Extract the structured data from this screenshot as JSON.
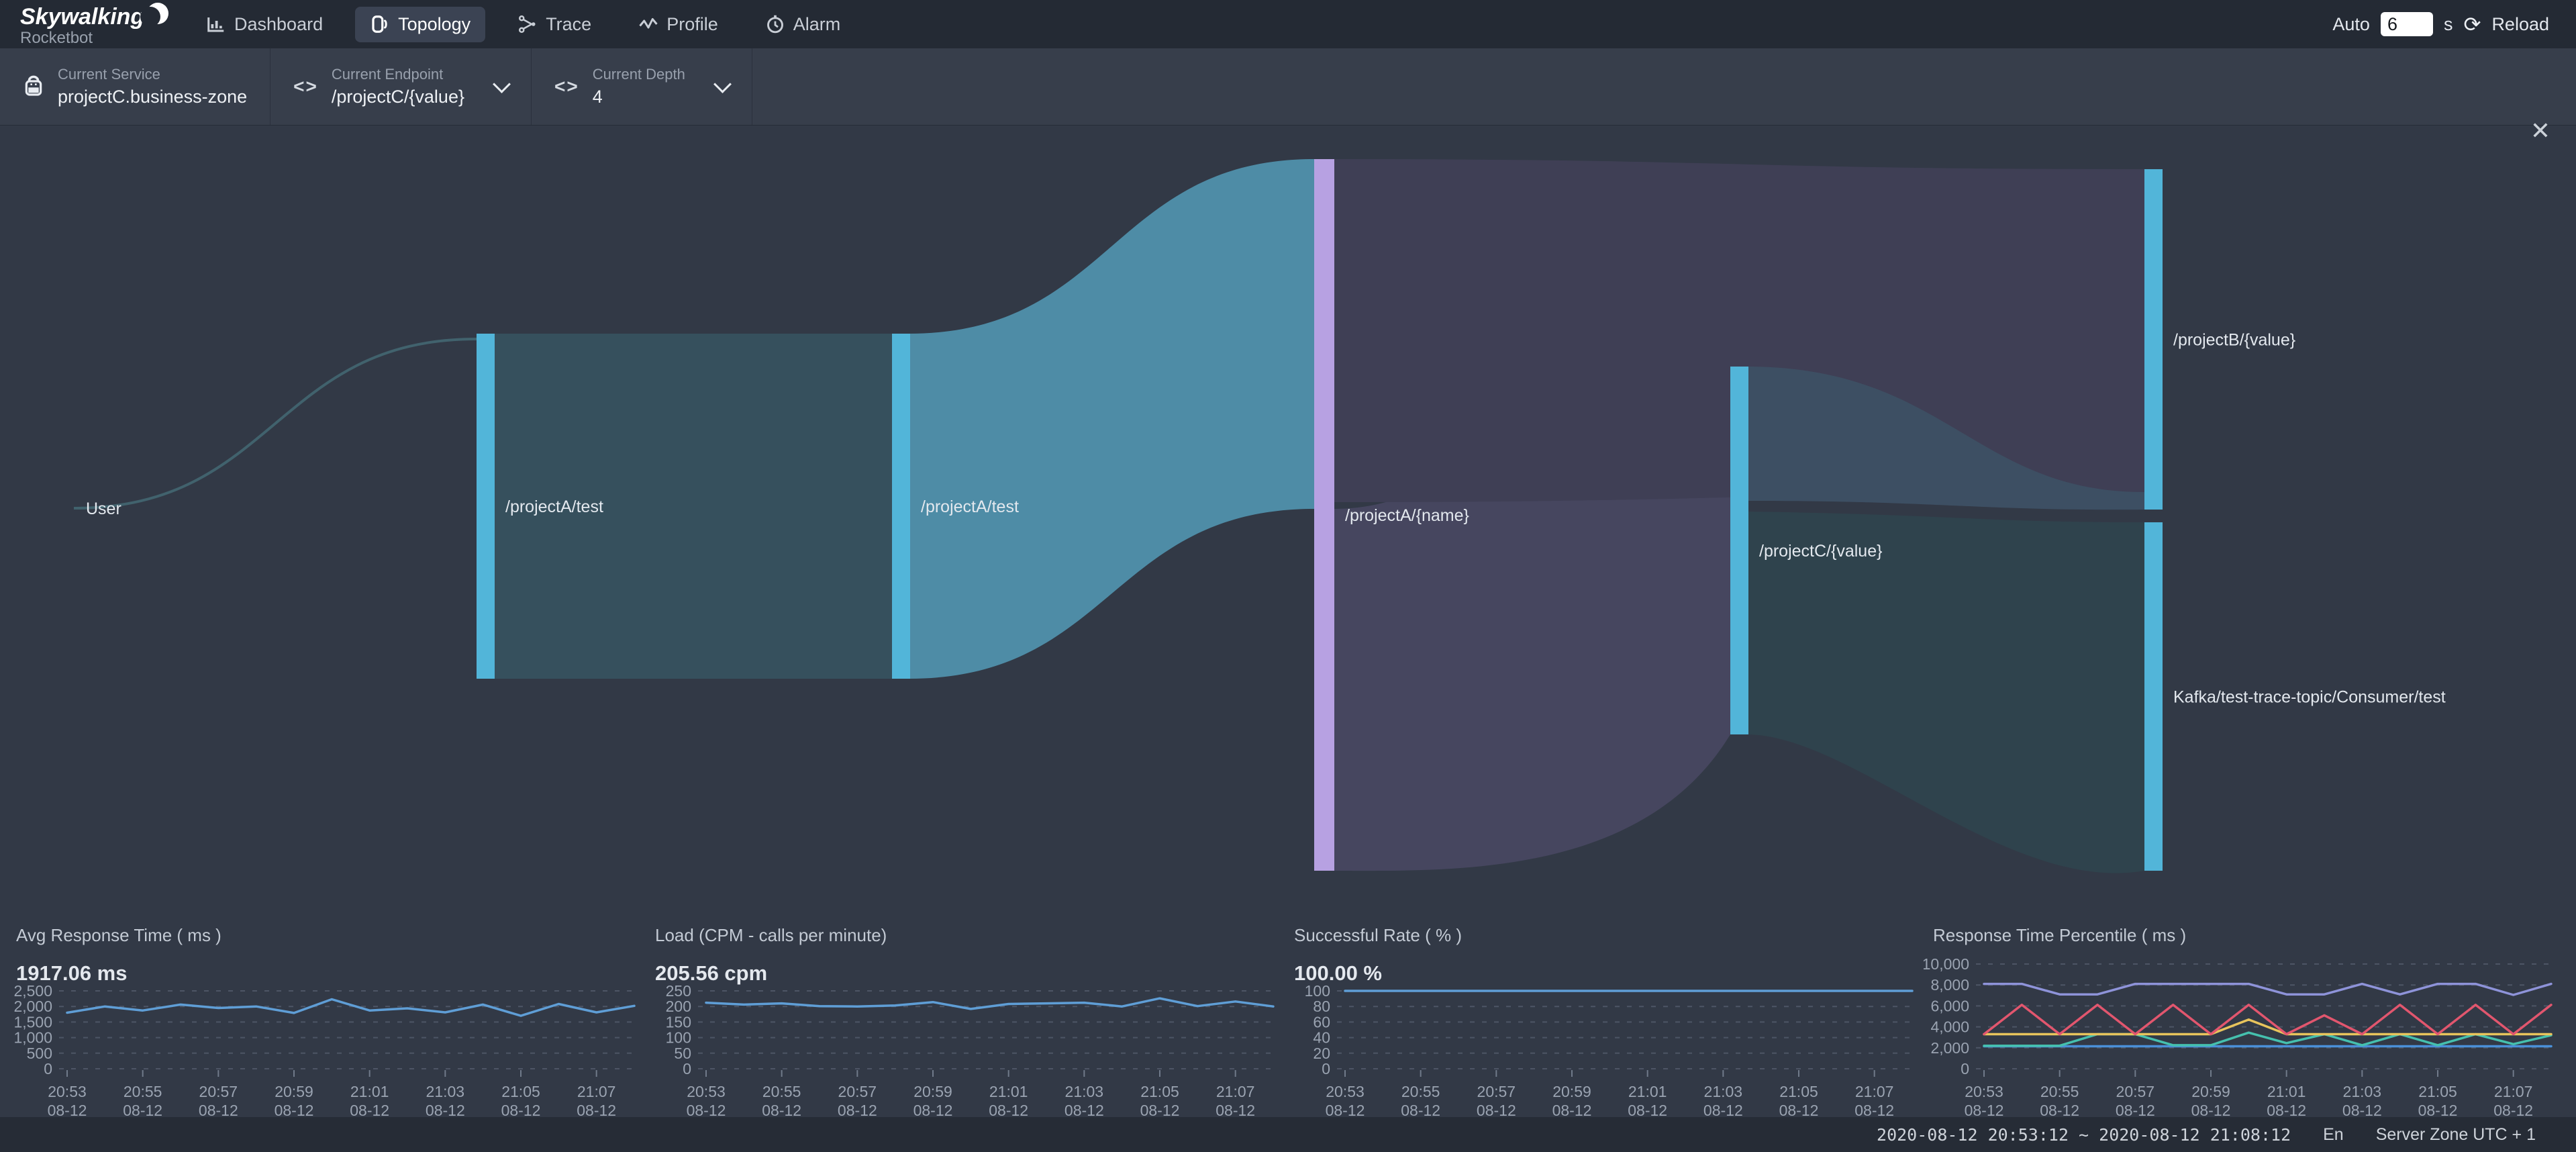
{
  "header": {
    "logo": {
      "title": "Skywalking",
      "subtitle": "Rocketbot"
    },
    "nav": [
      {
        "label": "Dashboard",
        "icon": "dashboard-icon",
        "active": false
      },
      {
        "label": "Topology",
        "icon": "topology-icon",
        "active": true
      },
      {
        "label": "Trace",
        "icon": "trace-icon",
        "active": false
      },
      {
        "label": "Profile",
        "icon": "profile-icon",
        "active": false
      },
      {
        "label": "Alarm",
        "icon": "alarm-icon",
        "active": false
      }
    ],
    "auto": {
      "label": "Auto",
      "value": "6",
      "unit": "s",
      "reload_label": "Reload",
      "reload_glyph": "⟳"
    }
  },
  "toolbar": {
    "service": {
      "label": "Current Service",
      "value": "projectC.business-zone"
    },
    "endpoint": {
      "label": "Current Endpoint",
      "value": "/projectC/{value}",
      "icon_glyph": "<>"
    },
    "depth": {
      "label": "Current Depth",
      "value": "4",
      "icon_glyph": "<>"
    },
    "close_glyph": "✕"
  },
  "sankey": {
    "nodes": [
      {
        "id": "user",
        "label": "User",
        "color": null
      },
      {
        "id": "projectA-test-1",
        "label": "/projectA/test",
        "color": "#52b5d9",
        "label_color": "#e3e8ee"
      },
      {
        "id": "projectA-test-2",
        "label": "/projectA/test",
        "color": "#52b5d9",
        "label_color": "#54b7dc"
      },
      {
        "id": "projectA-name",
        "label": "/projectA/{name}",
        "color": "#b7a1e2",
        "label_color": "#e3e8ee"
      },
      {
        "id": "projectC-value",
        "label": "/projectC/{value}",
        "color": "#52b5d9",
        "label_color": "#e3e8ee"
      },
      {
        "id": "projectB-value",
        "label": "/projectB/{value}",
        "color": "#52b5d9",
        "label_color": "#e3e8ee"
      },
      {
        "id": "kafka-consumer",
        "label": "Kafka/test-trace-topic/Consumer/test",
        "color": "#52b5d9",
        "label_color": "#e3e8ee"
      }
    ],
    "links": [
      {
        "source": "user",
        "target": "projectA-test-1",
        "color": "#41626d"
      },
      {
        "source": "projectA-test-1",
        "target": "projectA-test-2",
        "color": "#36505d"
      },
      {
        "source": "projectA-test-2",
        "target": "projectA-name",
        "color": "#4e8ca6"
      },
      {
        "source": "projectA-name",
        "target": "projectB-value",
        "color": "#3f3f55"
      },
      {
        "source": "projectA-name",
        "target": "projectC-value",
        "color": "#46465f"
      },
      {
        "source": "projectC-value",
        "target": "projectB-value",
        "color": "#3d4f63"
      },
      {
        "source": "projectC-value",
        "target": "kafka-consumer",
        "color": "#2f434d"
      }
    ]
  },
  "chart_data": [
    {
      "type": "line",
      "title": "Avg Response Time ( ms )",
      "value_label": "1917.06 ms",
      "xlabel": "",
      "ylabel": "",
      "ylim": [
        0,
        2500
      ],
      "yticks": [
        "2,500",
        "2,000",
        "1,500",
        "1,000",
        "500",
        "0"
      ],
      "x_ticks": [
        "20:53",
        "20:55",
        "20:57",
        "20:59",
        "21:01",
        "21:03",
        "21:05",
        "21:07"
      ],
      "x_sub": "08-12",
      "grid": "dashed",
      "series": [
        {
          "name": "avg-response-time",
          "color": "#5f9ed6",
          "values": [
            1800,
            2000,
            1870,
            2060,
            1950,
            2000,
            1790,
            2230,
            1870,
            1940,
            1810,
            2060,
            1700,
            2080,
            1810,
            2020
          ]
        }
      ]
    },
    {
      "type": "line",
      "title": "Load (CPM - calls per minute)",
      "value_label": "205.56 cpm",
      "xlabel": "",
      "ylabel": "",
      "ylim": [
        0,
        250
      ],
      "yticks": [
        "250",
        "200",
        "150",
        "100",
        "50",
        "0"
      ],
      "x_ticks": [
        "20:53",
        "20:55",
        "20:57",
        "20:59",
        "21:01",
        "21:03",
        "21:05",
        "21:07"
      ],
      "x_sub": "08-12",
      "grid": "dashed",
      "series": [
        {
          "name": "load-cpm",
          "color": "#5f9ed6",
          "values": [
            212,
            206,
            210,
            201,
            200,
            203,
            214,
            192,
            208,
            210,
            212,
            200,
            226,
            201,
            216,
            200
          ]
        }
      ]
    },
    {
      "type": "line",
      "title": "Successful Rate ( % )",
      "value_label": "100.00 %",
      "xlabel": "",
      "ylabel": "",
      "ylim": [
        0,
        100
      ],
      "yticks": [
        "100",
        "80",
        "60",
        "40",
        "20",
        "0"
      ],
      "x_ticks": [
        "20:53",
        "20:55",
        "20:57",
        "20:59",
        "21:01",
        "21:03",
        "21:05",
        "21:07"
      ],
      "x_sub": "08-12",
      "grid": "dashed",
      "series": [
        {
          "name": "successful-rate",
          "color": "#5f9ed6",
          "values": [
            100,
            100,
            100,
            100,
            100,
            100,
            100,
            100,
            100,
            100,
            100,
            100,
            100,
            100,
            100,
            100
          ]
        }
      ]
    },
    {
      "type": "line",
      "title": "Response Time Percentile ( ms )",
      "value_label": "",
      "xlabel": "",
      "ylabel": "",
      "ylim": [
        0,
        10000
      ],
      "yticks": [
        "10,000",
        "8,000",
        "6,000",
        "4,000",
        "2,000",
        "0"
      ],
      "x_ticks": [
        "20:53",
        "20:55",
        "20:57",
        "20:59",
        "21:01",
        "21:03",
        "21:05",
        "21:07"
      ],
      "x_sub": "08-12",
      "grid": "dashed",
      "series": [
        {
          "name": "line-blue",
          "color": "#4a90d8",
          "values": [
            2150,
            2150,
            2150,
            2150,
            2150,
            2150,
            2150,
            2150,
            2150,
            2150,
            2150,
            2150,
            2150,
            2150,
            2150,
            2150
          ]
        },
        {
          "name": "line-green",
          "color": "#45c0ae",
          "values": [
            2200,
            2200,
            2200,
            3300,
            3300,
            2250,
            2250,
            3450,
            2450,
            3300,
            2250,
            3300,
            2250,
            3300,
            2350,
            3200
          ]
        },
        {
          "name": "line-yellow",
          "color": "#e8c45c",
          "values": [
            3300,
            3300,
            3300,
            3300,
            3300,
            3300,
            3300,
            4700,
            3300,
            3300,
            3300,
            3300,
            3300,
            3300,
            3300,
            3300
          ]
        },
        {
          "name": "line-red",
          "color": "#e2566e",
          "values": [
            3300,
            6100,
            3300,
            6100,
            3300,
            6100,
            3300,
            6100,
            3300,
            5100,
            3300,
            6100,
            3300,
            6100,
            3300,
            6100
          ]
        },
        {
          "name": "line-purple",
          "color": "#8e93d9",
          "values": [
            8100,
            8100,
            7100,
            7100,
            8100,
            8100,
            8100,
            8100,
            7100,
            7100,
            8100,
            7100,
            8100,
            8100,
            7050,
            8100
          ]
        }
      ]
    }
  ],
  "footer": {
    "time_range": "2020-08-12 20:53:12 ~ 2020-08-12 21:08:12",
    "lang": "En",
    "zone": "Server Zone UTC + 1"
  }
}
